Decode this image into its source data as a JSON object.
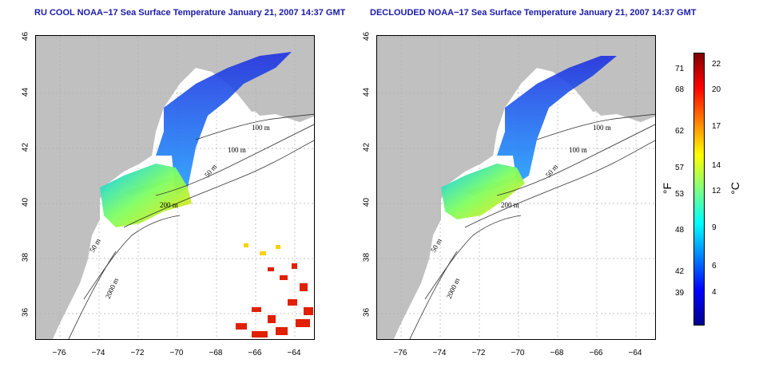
{
  "panels": [
    {
      "title": "RU COOL NOAA−17 Sea Surface Temperature January 21, 2007 14:37 GMT"
    },
    {
      "title": "DECLOUDED NOAA−17 Sea Surface Temperature January 21, 2007 14:37 GMT"
    }
  ],
  "map": {
    "lon_ticks": [
      "−76",
      "−74",
      "−72",
      "−70",
      "−68",
      "−66",
      "−64"
    ],
    "lat_ticks": [
      "36",
      "38",
      "40",
      "42",
      "44",
      "46"
    ],
    "lon_range": [
      -77,
      -63
    ],
    "lat_range": [
      35,
      46
    ],
    "contour_labels": [
      "100 m",
      "100 m",
      "50 m",
      "200 m",
      "50 m",
      "2000 m"
    ],
    "land_color": "#c0c0c0",
    "grid": "dotted"
  },
  "colorbar": {
    "fahrenheit_ticks": [
      "71",
      "68",
      "62",
      "57",
      "53",
      "48",
      "42",
      "39"
    ],
    "celsius_ticks": [
      "22",
      "20",
      "17",
      "14",
      "12",
      "9",
      "6",
      "4"
    ],
    "unit_f": "°F",
    "unit_c": "°C",
    "colors": [
      "#00008f",
      "#0000ff",
      "#0080ff",
      "#00ffff",
      "#80ff80",
      "#ffff00",
      "#ff8000",
      "#ff0000",
      "#800000"
    ]
  }
}
